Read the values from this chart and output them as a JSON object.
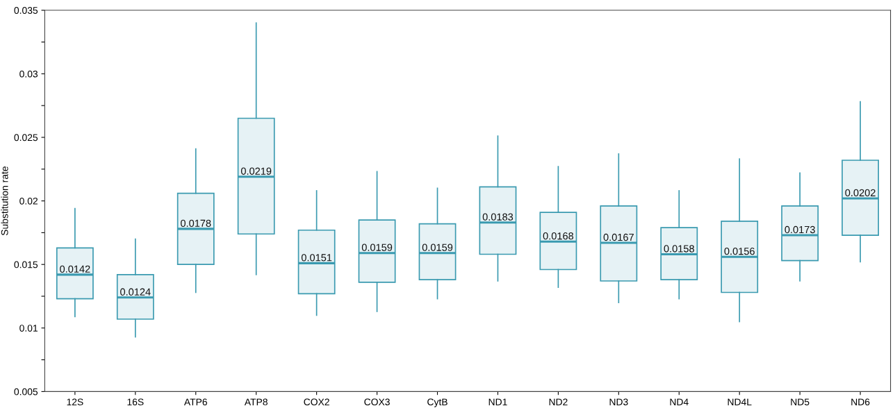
{
  "chart_data": {
    "type": "box",
    "ylabel": "Substitution rate",
    "categories": [
      "12S",
      "16S",
      "ATP6",
      "ATP8",
      "COX2",
      "COX3",
      "CytB",
      "ND1",
      "ND2",
      "ND3",
      "ND4",
      "ND4L",
      "ND5",
      "ND6"
    ],
    "series": [
      {
        "color": "#3a9ab0",
        "value_labels": [
          "0.0142",
          "0.0124",
          "0.0178",
          "0.0219",
          "0.0151",
          "0.0159",
          "0.0159",
          "0.0183",
          "0.0168",
          "0.0167",
          "0.0158",
          "0.0156",
          "0.0173",
          "0.0202"
        ],
        "boxes": [
          {
            "low": 0.0109,
            "q1": 0.0123,
            "median": 0.0142,
            "q3": 0.0163,
            "high": 0.0194
          },
          {
            "low": 0.0093,
            "q1": 0.0107,
            "median": 0.0124,
            "q3": 0.0142,
            "high": 0.017
          },
          {
            "low": 0.0128,
            "q1": 0.015,
            "median": 0.0178,
            "q3": 0.0206,
            "high": 0.0241
          },
          {
            "low": 0.0142,
            "q1": 0.0174,
            "median": 0.0219,
            "q3": 0.0265,
            "high": 0.034
          },
          {
            "low": 0.011,
            "q1": 0.0127,
            "median": 0.0151,
            "q3": 0.0177,
            "high": 0.0208
          },
          {
            "low": 0.0113,
            "q1": 0.0136,
            "median": 0.0159,
            "q3": 0.0185,
            "high": 0.0223
          },
          {
            "low": 0.0123,
            "q1": 0.0138,
            "median": 0.0159,
            "q3": 0.0182,
            "high": 0.021
          },
          {
            "low": 0.0137,
            "q1": 0.0158,
            "median": 0.0183,
            "q3": 0.0211,
            "high": 0.0251
          },
          {
            "low": 0.0132,
            "q1": 0.0146,
            "median": 0.0168,
            "q3": 0.0191,
            "high": 0.0227
          },
          {
            "low": 0.012,
            "q1": 0.0137,
            "median": 0.0167,
            "q3": 0.0196,
            "high": 0.0237
          },
          {
            "low": 0.0123,
            "q1": 0.0138,
            "median": 0.0158,
            "q3": 0.0179,
            "high": 0.0208
          },
          {
            "low": 0.0105,
            "q1": 0.0128,
            "median": 0.0156,
            "q3": 0.0184,
            "high": 0.0233
          },
          {
            "low": 0.0137,
            "q1": 0.0153,
            "median": 0.0173,
            "q3": 0.0196,
            "high": 0.0222
          },
          {
            "low": 0.0152,
            "q1": 0.0173,
            "median": 0.0202,
            "q3": 0.0232,
            "high": 0.0278
          }
        ]
      }
    ],
    "ylim": [
      0.005,
      0.035
    ],
    "yticks": [
      0.005,
      {
        "value": 0.0075,
        "label": null
      },
      0.01,
      {
        "value": 0.0125,
        "label": null
      },
      0.015,
      {
        "value": 0.0175,
        "label": null
      },
      0.02,
      {
        "value": 0.0225,
        "label": null
      },
      0.025,
      {
        "value": 0.0275,
        "label": null
      },
      0.03,
      {
        "value": 0.0325,
        "label": null
      },
      0.035
    ],
    "grid": false,
    "legend": false
  }
}
